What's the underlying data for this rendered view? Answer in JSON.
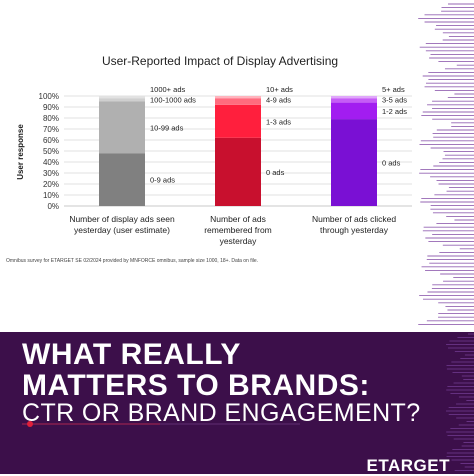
{
  "chart_data": {
    "type": "bar",
    "title": "User-Reported Impact of Display Advertising",
    "ylabel": "User response",
    "ylim": [
      0,
      100
    ],
    "yticks": [
      "0%",
      "10%",
      "20%",
      "30%",
      "40%",
      "50%",
      "60%",
      "70%",
      "80%",
      "90%",
      "100%"
    ],
    "categories": [
      "Number of display ads seen yesterday (user estimate)",
      "Number of ads remembered from yesterday",
      "Number of ads clicked through yesterday"
    ],
    "bars": [
      {
        "category_lines": [
          "Number of display ads seen",
          "yesterday (user estimate)"
        ],
        "segments": [
          {
            "label": "0-9 ads",
            "value": 48,
            "color": "#808080"
          },
          {
            "label": "10-99 ads",
            "value": 47,
            "color": "#b0b0b0"
          },
          {
            "label": "100-1000 ads",
            "value": 3,
            "color": "#cfcfcf"
          },
          {
            "label": "1000+ ads",
            "value": 2,
            "color": "#e2e2e2"
          }
        ]
      },
      {
        "category_lines": [
          "Number of ads",
          "remembered from",
          "yesterday"
        ],
        "segments": [
          {
            "label": "0 ads",
            "value": 62,
            "color": "#c8102e"
          },
          {
            "label": "1-3 ads",
            "value": 30,
            "color": "#ff1f3d"
          },
          {
            "label": "4-9 ads",
            "value": 6,
            "color": "#ff6b7e"
          },
          {
            "label": "10+ ads",
            "value": 2,
            "color": "#ffb3bd"
          }
        ]
      },
      {
        "category_lines": [
          "Number of ads clicked",
          "through yesterday"
        ],
        "segments": [
          {
            "label": "0 ads",
            "value": 79,
            "color": "#7a10d4"
          },
          {
            "label": "1-2 ads",
            "value": 15,
            "color": "#a21df0"
          },
          {
            "label": "3-5 ads",
            "value": 4,
            "color": "#c55cf6"
          },
          {
            "label": "5+ ads",
            "value": 2,
            "color": "#e0a6fb"
          }
        ]
      }
    ],
    "grid": true,
    "legend": "none"
  },
  "footnote": "Omnibus survey for ETARGET SE 02/2024 provided by MNFORCE omnibus, sample size 1000, 18+. Data on file.",
  "headline": {
    "line1": "WHAT REALLY",
    "line2": "MATTERS TO BRANDS:",
    "line3": "CTR OR BRAND ENGAGEMENT?"
  },
  "brand": "ETARGET",
  "colors": {
    "panel_bg": "#3c0f4a",
    "accent_red": "#e0203b",
    "deco_purple": "#7a3fa0"
  }
}
